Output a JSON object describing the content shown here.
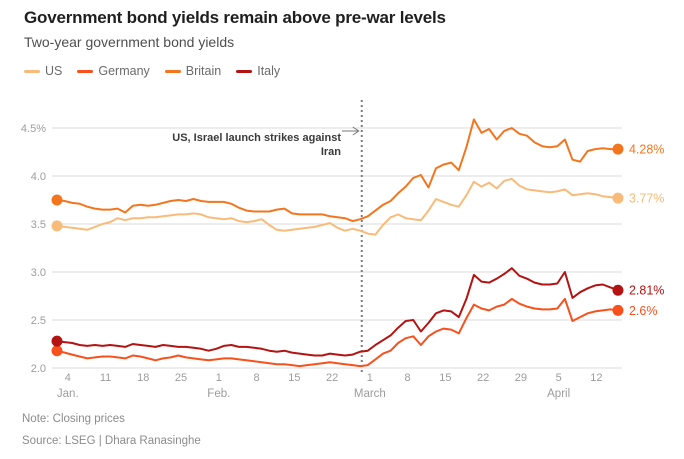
{
  "header": {
    "title": "Government bond yields remain above pre-war levels",
    "subtitle": "Two-year government bond yields"
  },
  "legend": [
    {
      "label": "US",
      "color": "#F9BB79"
    },
    {
      "label": "Germany",
      "color": "#F8511D"
    },
    {
      "label": "Britain",
      "color": "#F3761F"
    },
    {
      "label": "Italy",
      "color": "#B31312"
    }
  ],
  "footer": {
    "note": "Note: Closing prices",
    "source": "Source: LSEG | Dhara Ranasinghe"
  },
  "chart_data": {
    "type": "line",
    "title": "Government bond yields remain above pre-war levels",
    "subtitle": "Two-year government bond yields",
    "unit": "%",
    "x_range_days": [
      0,
      104
    ],
    "ylim": [
      1.9,
      4.72
    ],
    "grid": true,
    "legend_position": "top",
    "colors": {
      "grid": "#DBDBDB",
      "axis_text": "#9C9C9C",
      "event_line": "#7D7D7D",
      "arrow": "#777777"
    },
    "yticks": [
      {
        "value": 4.5,
        "label": "4.5%"
      },
      {
        "value": 4.0,
        "label": "4.0"
      },
      {
        "value": 3.5,
        "label": "3.5"
      },
      {
        "value": 3.0,
        "label": "3.0"
      },
      {
        "value": 2.5,
        "label": "2.5"
      },
      {
        "value": 2.0,
        "label": "2.0"
      }
    ],
    "xticks": [
      {
        "day": 2,
        "label": "4"
      },
      {
        "day": 9,
        "label": "11"
      },
      {
        "day": 16,
        "label": "18"
      },
      {
        "day": 23,
        "label": "25"
      },
      {
        "day": 30,
        "label": "1"
      },
      {
        "day": 37,
        "label": "8"
      },
      {
        "day": 44,
        "label": "15"
      },
      {
        "day": 51,
        "label": "22"
      },
      {
        "day": 58,
        "label": "1"
      },
      {
        "day": 65,
        "label": "8"
      },
      {
        "day": 72,
        "label": "15"
      },
      {
        "day": 79,
        "label": "22"
      },
      {
        "day": 86,
        "label": "29"
      },
      {
        "day": 93,
        "label": "5"
      },
      {
        "day": 100,
        "label": "12"
      }
    ],
    "month_labels": [
      {
        "day": 2,
        "label": "Jan."
      },
      {
        "day": 30,
        "label": "Feb."
      },
      {
        "day": 58,
        "label": "March"
      },
      {
        "day": 93,
        "label": "April"
      }
    ],
    "event_line": {
      "day": 56.5,
      "annotation_lines": [
        "US, Israel launch strikes against",
        "Iran"
      ]
    },
    "series": [
      {
        "name": "US",
        "color": "#F9BB79",
        "end_label": "3.77%",
        "values": [
          3.48,
          3.47,
          3.46,
          3.45,
          3.44,
          3.47,
          3.5,
          3.52,
          3.56,
          3.54,
          3.56,
          3.56,
          3.57,
          3.57,
          3.58,
          3.59,
          3.6,
          3.6,
          3.61,
          3.6,
          3.57,
          3.56,
          3.55,
          3.56,
          3.53,
          3.52,
          3.53,
          3.55,
          3.49,
          3.44,
          3.43,
          3.44,
          3.45,
          3.46,
          3.47,
          3.49,
          3.51,
          3.46,
          3.43,
          3.45,
          3.43,
          3.4,
          3.39,
          3.49,
          3.57,
          3.6,
          3.56,
          3.55,
          3.54,
          3.64,
          3.76,
          3.73,
          3.7,
          3.68,
          3.8,
          3.94,
          3.89,
          3.93,
          3.87,
          3.95,
          3.97,
          3.9,
          3.86,
          3.85,
          3.84,
          3.83,
          3.84,
          3.86,
          3.8,
          3.81,
          3.82,
          3.81,
          3.79,
          3.78,
          3.77
        ]
      },
      {
        "name": "Germany",
        "color": "#F8511D",
        "end_label": "2.6%",
        "values": [
          2.18,
          2.16,
          2.14,
          2.12,
          2.1,
          2.11,
          2.12,
          2.12,
          2.11,
          2.1,
          2.13,
          2.12,
          2.1,
          2.08,
          2.1,
          2.11,
          2.13,
          2.11,
          2.1,
          2.09,
          2.08,
          2.09,
          2.1,
          2.1,
          2.09,
          2.08,
          2.07,
          2.06,
          2.05,
          2.04,
          2.04,
          2.03,
          2.02,
          2.03,
          2.04,
          2.05,
          2.06,
          2.05,
          2.04,
          2.03,
          2.02,
          2.03,
          2.09,
          2.15,
          2.18,
          2.26,
          2.31,
          2.33,
          2.24,
          2.33,
          2.38,
          2.41,
          2.4,
          2.36,
          2.52,
          2.66,
          2.62,
          2.6,
          2.64,
          2.66,
          2.72,
          2.67,
          2.64,
          2.62,
          2.61,
          2.61,
          2.62,
          2.72,
          2.49,
          2.53,
          2.57,
          2.59,
          2.6,
          2.61,
          2.6
        ]
      },
      {
        "name": "Britain",
        "color": "#F3761F",
        "end_label": "4.28%",
        "values": [
          3.75,
          3.74,
          3.72,
          3.71,
          3.68,
          3.66,
          3.65,
          3.65,
          3.66,
          3.62,
          3.69,
          3.7,
          3.69,
          3.7,
          3.72,
          3.74,
          3.75,
          3.74,
          3.76,
          3.74,
          3.73,
          3.73,
          3.73,
          3.71,
          3.67,
          3.64,
          3.63,
          3.63,
          3.63,
          3.65,
          3.66,
          3.61,
          3.6,
          3.6,
          3.6,
          3.6,
          3.58,
          3.57,
          3.56,
          3.53,
          3.55,
          3.58,
          3.64,
          3.7,
          3.74,
          3.82,
          3.89,
          3.98,
          4.01,
          3.88,
          4.08,
          4.12,
          4.14,
          4.06,
          4.3,
          4.59,
          4.45,
          4.49,
          4.38,
          4.47,
          4.5,
          4.44,
          4.42,
          4.35,
          4.31,
          4.3,
          4.31,
          4.38,
          4.17,
          4.15,
          4.26,
          4.28,
          4.29,
          4.28,
          4.28
        ]
      },
      {
        "name": "Italy",
        "color": "#B31312",
        "end_label": "2.81%",
        "values": [
          2.28,
          2.27,
          2.26,
          2.24,
          2.23,
          2.24,
          2.23,
          2.24,
          2.23,
          2.22,
          2.25,
          2.24,
          2.23,
          2.22,
          2.24,
          2.23,
          2.22,
          2.22,
          2.21,
          2.2,
          2.18,
          2.2,
          2.23,
          2.24,
          2.22,
          2.22,
          2.21,
          2.2,
          2.18,
          2.17,
          2.18,
          2.16,
          2.15,
          2.14,
          2.13,
          2.13,
          2.15,
          2.14,
          2.13,
          2.14,
          2.17,
          2.18,
          2.24,
          2.29,
          2.34,
          2.42,
          2.49,
          2.5,
          2.38,
          2.47,
          2.57,
          2.6,
          2.59,
          2.53,
          2.72,
          2.97,
          2.9,
          2.89,
          2.93,
          2.98,
          3.04,
          2.96,
          2.93,
          2.89,
          2.87,
          2.87,
          2.88,
          3.0,
          2.73,
          2.79,
          2.83,
          2.86,
          2.87,
          2.84,
          2.81
        ]
      }
    ]
  }
}
